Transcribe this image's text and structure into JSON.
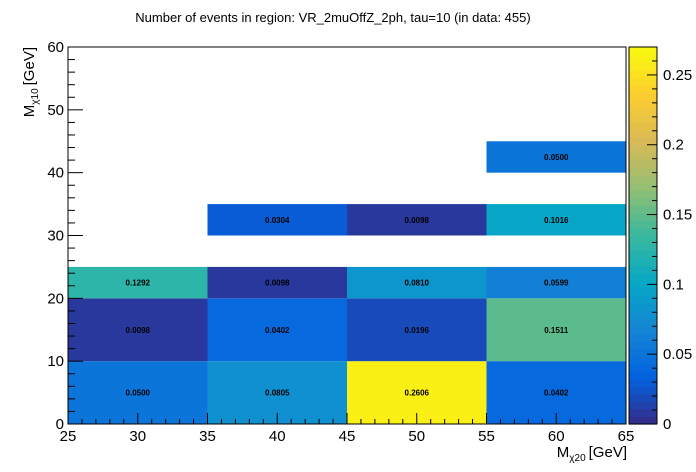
{
  "chart_data": {
    "type": "heatmap",
    "title": "Number of events in region: VR_2muOffZ_2ph, tau=10 (in data: 455)",
    "xlabel": {
      "main": "M",
      "sub": "χ20",
      "unit": "[GeV]"
    },
    "ylabel": {
      "main": "M",
      "sub": "χ10",
      "unit": "[GeV]"
    },
    "xlim": [
      25,
      65
    ],
    "ylim": [
      0,
      60
    ],
    "zlim": [
      0,
      0.27
    ],
    "x_ticks": [
      "25",
      "30",
      "35",
      "40",
      "45",
      "50",
      "55",
      "60",
      "65"
    ],
    "y_ticks": [
      "0",
      "10",
      "20",
      "30",
      "40",
      "50",
      "60"
    ],
    "z_ticks": [
      "0",
      "0.05",
      "0.1",
      "0.15",
      "0.2",
      "0.25"
    ],
    "cells": [
      {
        "x": [
          25,
          35
        ],
        "y": [
          0,
          10
        ],
        "value": 0.05,
        "label": "0.0500"
      },
      {
        "x": [
          35,
          45
        ],
        "y": [
          0,
          10
        ],
        "value": 0.0805,
        "label": "0.0805"
      },
      {
        "x": [
          45,
          55
        ],
        "y": [
          0,
          10
        ],
        "value": 0.2606,
        "label": "0.2606"
      },
      {
        "x": [
          55,
          65
        ],
        "y": [
          0,
          10
        ],
        "value": 0.0402,
        "label": "0.0402"
      },
      {
        "x": [
          25,
          35
        ],
        "y": [
          10,
          20
        ],
        "value": 0.0098,
        "label": "0.0098"
      },
      {
        "x": [
          35,
          45
        ],
        "y": [
          10,
          20
        ],
        "value": 0.0402,
        "label": "0.0402"
      },
      {
        "x": [
          45,
          55
        ],
        "y": [
          10,
          20
        ],
        "value": 0.0196,
        "label": "0.0196"
      },
      {
        "x": [
          55,
          65
        ],
        "y": [
          10,
          20
        ],
        "value": 0.1511,
        "label": "0.1511"
      },
      {
        "x": [
          25,
          35
        ],
        "y": [
          20,
          25
        ],
        "value": 0.1292,
        "label": "0.1292"
      },
      {
        "x": [
          35,
          45
        ],
        "y": [
          20,
          25
        ],
        "value": 0.0098,
        "label": "0.0098"
      },
      {
        "x": [
          45,
          55
        ],
        "y": [
          20,
          25
        ],
        "value": 0.081,
        "label": "0.0810"
      },
      {
        "x": [
          55,
          65
        ],
        "y": [
          20,
          25
        ],
        "value": 0.0599,
        "label": "0.0599"
      },
      {
        "x": [
          35,
          45
        ],
        "y": [
          30,
          35
        ],
        "value": 0.0304,
        "label": "0.0304"
      },
      {
        "x": [
          45,
          55
        ],
        "y": [
          30,
          35
        ],
        "value": 0.0098,
        "label": "0.0098"
      },
      {
        "x": [
          55,
          65
        ],
        "y": [
          30,
          35
        ],
        "value": 0.1016,
        "label": "0.1016"
      },
      {
        "x": [
          55,
          65
        ],
        "y": [
          40,
          45
        ],
        "value": 0.05,
        "label": "0.0500"
      }
    ],
    "palette": [
      "#352a87",
      "#0363e1",
      "#1485d4",
      "#06a7c6",
      "#38b99e",
      "#92bf73",
      "#d9ba56",
      "#fcce2e",
      "#f9fb0e"
    ]
  }
}
